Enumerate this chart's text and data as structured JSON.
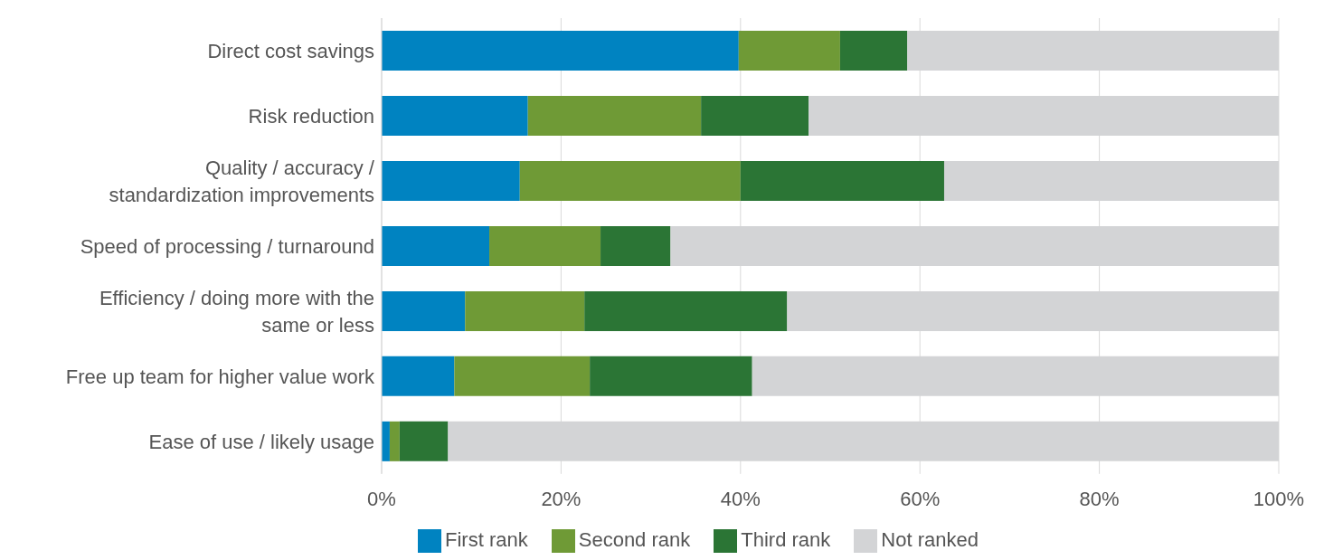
{
  "chart_data": {
    "type": "bar",
    "orientation": "horizontal",
    "stacked": true,
    "categories": [
      "Direct cost savings",
      "Risk reduction",
      "Quality / accuracy / standardization improvements",
      "Speed of processing / turnaround",
      "Efficiency / doing more with the same or less",
      "Free up team for higher value work",
      "Ease of use / likely usage"
    ],
    "series": [
      {
        "name": "First rank",
        "color": "#0083c1",
        "values": [
          39.8,
          16.3,
          15.4,
          12.0,
          9.3,
          8.1,
          0.9
        ]
      },
      {
        "name": "Second rank",
        "color": "#6f9a36",
        "values": [
          11.3,
          19.3,
          24.6,
          12.4,
          13.3,
          15.1,
          1.1
        ]
      },
      {
        "name": "Third rank",
        "color": "#2b7535",
        "values": [
          7.5,
          12.0,
          22.7,
          7.8,
          22.6,
          18.1,
          5.4
        ]
      },
      {
        "name": "Not ranked",
        "color": "#d3d4d6",
        "values": [
          41.4,
          52.4,
          37.3,
          67.8,
          54.8,
          58.7,
          92.6
        ]
      }
    ],
    "xlim": [
      0,
      100
    ],
    "xticks": [
      {
        "value": 0,
        "label": "0%"
      },
      {
        "value": 20,
        "label": "20%"
      },
      {
        "value": 40,
        "label": "40%"
      },
      {
        "value": 60,
        "label": "60%"
      },
      {
        "value": 80,
        "label": "80%"
      },
      {
        "value": 100,
        "label": "100%"
      }
    ],
    "grid": "x",
    "legend": "bottom"
  }
}
